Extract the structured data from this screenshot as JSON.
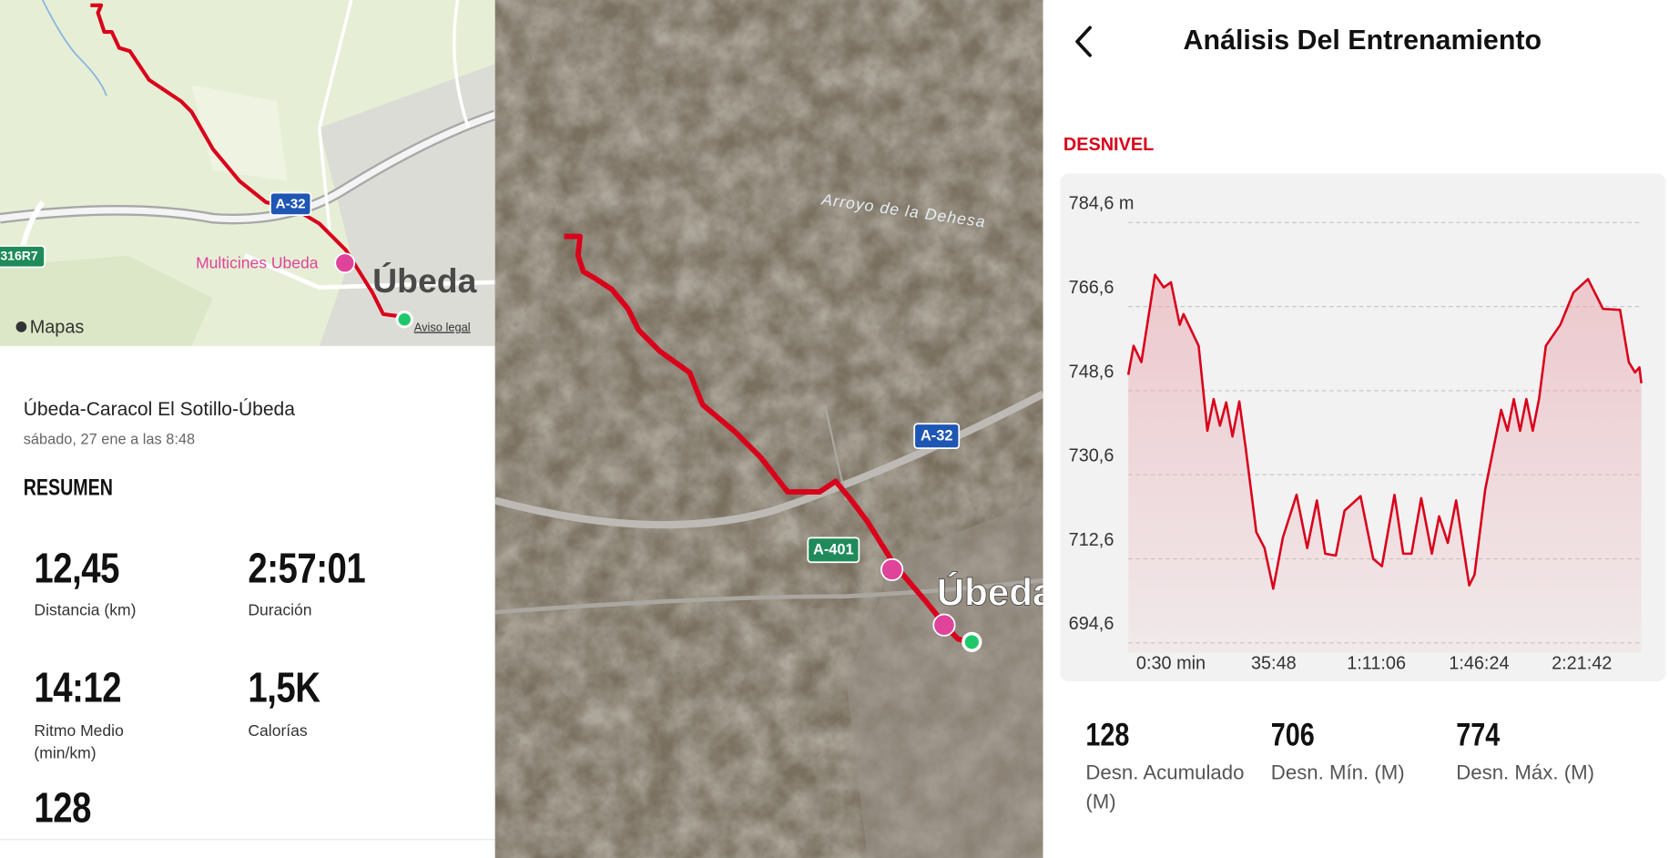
{
  "left_panel": {
    "map": {
      "road_label": "A-32",
      "road_label_2": "316R7",
      "poi": "Multicines Ubeda",
      "city": "Úbeda",
      "attribution": "Mapas",
      "legal": "Aviso legal"
    },
    "activity": {
      "title": "Úbeda-Caracol El Sotillo-Úbeda",
      "date": "sábado, 27 ene a las 8:48",
      "section": "RESUMEN",
      "stats": [
        {
          "value": "12,45",
          "label": "Distancia (km)"
        },
        {
          "value": "2:57:01",
          "label": "Duración"
        },
        {
          "value": "14:12",
          "label": "Ritmo Medio (min/km)"
        },
        {
          "value": "1,5K",
          "label": "Calorías"
        },
        {
          "value": 128
        }
      ]
    }
  },
  "satellite_map": {
    "stream": "Arroyo de la Dehesa",
    "road_1": "A-32",
    "road_2": "A-401",
    "city": "Úbeda"
  },
  "analysis": {
    "header": {
      "title": "Análisis Del Entrenamiento"
    },
    "section": "DESNIVEL",
    "stats": [
      {
        "value": 128,
        "label": "Desn. Acumulado (M)"
      },
      {
        "value": 706,
        "label": "Desn. Mín. (M)"
      },
      {
        "value": 774,
        "label": "Desn. Máx. (M)"
      }
    ]
  },
  "chart_data": {
    "type": "line",
    "color": "#d9001b",
    "fill": "#e8a6ae",
    "grid": true,
    "x": [
      -850,
      -740,
      -580,
      -300,
      -120,
      30,
      210,
      290,
      600,
      780,
      910,
      1040,
      1170,
      1300,
      1440,
      1570,
      1790,
      1960,
      2140,
      2340,
      2620,
      2840,
      3040,
      3210,
      3430,
      3610,
      3940,
      4200,
      4380,
      4640,
      4820,
      4990,
      5190,
      5410,
      5560,
      5740,
      5910,
      6180,
      6290,
      6510,
      6840,
      6970,
      7100,
      7230,
      7360,
      7490,
      7620,
      7760,
      8060,
      8330,
      8630,
      8940,
      9290,
      9470,
      9600,
      9690,
      9730
    ],
    "values": [
      752.0,
      758.2,
      754.7,
      773.4,
      770.7,
      771.8,
      762.7,
      765.0,
      758.2,
      740.0,
      746.8,
      741.1,
      746.1,
      738.8,
      746.3,
      736.5,
      718.3,
      714.9,
      706.2,
      717.2,
      726.3,
      714.9,
      725.1,
      713.7,
      713.3,
      722.9,
      726.0,
      712.6,
      711.0,
      726.3,
      713.7,
      713.7,
      725.6,
      713.7,
      721.7,
      716.0,
      725.1,
      706.9,
      709.2,
      727.4,
      744.5,
      740.0,
      746.8,
      740.0,
      746.8,
      740.0,
      746.8,
      758.2,
      762.7,
      769.6,
      772.5,
      766.1,
      765.9,
      754.7,
      752.5,
      753.6,
      750.2
    ],
    "xlim": [
      -850,
      9730
    ],
    "ylim": [
      692.5,
      792.8
    ],
    "xticks": [
      {
        "value": 30,
        "label": "0:30 min"
      },
      {
        "value": 2148,
        "label": "35:48"
      },
      {
        "value": 4266,
        "label": "1:11:06"
      },
      {
        "value": 6384,
        "label": "1:46:24"
      },
      {
        "value": 8502,
        "label": "2:21:42"
      }
    ],
    "yticks": [
      {
        "value": 694.6,
        "label": "694,6"
      },
      {
        "value": 712.6,
        "label": "712,6"
      },
      {
        "value": 730.6,
        "label": "730,6"
      },
      {
        "value": 748.6,
        "label": "748,6"
      },
      {
        "value": 766.6,
        "label": "766,6"
      },
      {
        "value": 784.6,
        "label": "784,6 m"
      }
    ]
  }
}
